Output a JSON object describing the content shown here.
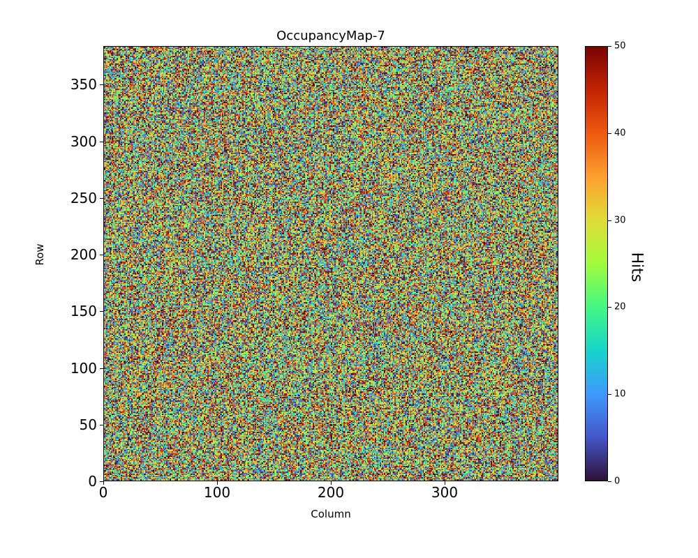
{
  "figure": {
    "title": "OccupancyMap-7"
  },
  "chart_data": {
    "type": "heatmap",
    "title": "OccupancyMap-7",
    "xlabel": "Column",
    "ylabel": "Row",
    "colorbar_label": "Hits",
    "xlim": [
      0,
      400
    ],
    "ylim": [
      0,
      384
    ],
    "clim": [
      0,
      50
    ],
    "xticks": [
      0,
      100,
      200,
      300
    ],
    "yticks": [
      0,
      50,
      100,
      150,
      200,
      250,
      300,
      350
    ],
    "colorbar_ticks": [
      0,
      10,
      20,
      30,
      40,
      50
    ],
    "grid": false,
    "legend": "none",
    "colormap": "turbo",
    "colormap_anchors": [
      "#30123b",
      "#4458cb",
      "#3e9bfe",
      "#18d6cb",
      "#46f884",
      "#a2fc3c",
      "#e1dd37",
      "#fea130",
      "#ef5a11",
      "#c42503",
      "#7a0403"
    ],
    "grid_size": {
      "rows": 384,
      "cols": 400
    },
    "values_description": "dense per-pixel hit counts appearing as uniform random integers between 0 and 50 across all 400x384 cells"
  }
}
